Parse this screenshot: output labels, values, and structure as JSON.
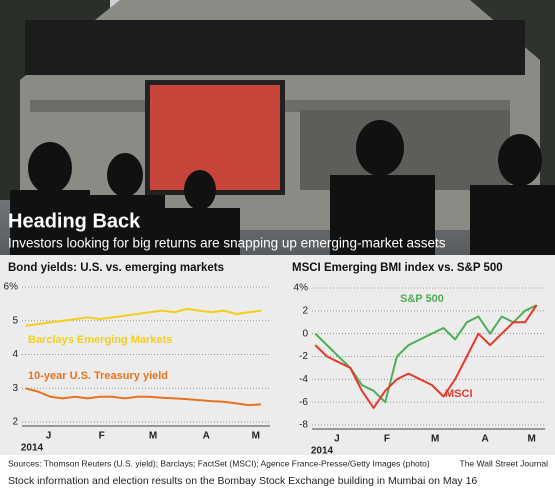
{
  "headline": "Heading Back",
  "subheadline": "Investors looking for big returns are snapping up emerging-market assets",
  "sources": "Sources: Thomson Reuters (U.S. yield); Barclays; FactSet (MSCI); Agence France-Presse/Getty Images (photo)",
  "credit": "The Wall Street Journal",
  "caption": "Stock information and election results on the Bombay Stock Exchange building in Mumbai on May 16",
  "chart_data": [
    {
      "type": "line",
      "title": "Bond yields: U.S. vs. emerging markets",
      "xlabel": "2014",
      "x": [
        2,
        9,
        16,
        23,
        30,
        37,
        44,
        51,
        58,
        65,
        72,
        79,
        86,
        93,
        100,
        107,
        114,
        121,
        128,
        135
      ],
      "xlim": [
        0,
        140
      ],
      "xticks": [
        {
          "value": 15,
          "label": "J"
        },
        {
          "value": 45,
          "label": "F"
        },
        {
          "value": 74,
          "label": "M"
        },
        {
          "value": 104,
          "label": "A"
        },
        {
          "value": 132,
          "label": "M"
        }
      ],
      "ylim": [
        2,
        6
      ],
      "yticks": [
        2,
        3,
        4,
        5,
        {
          "value": 6,
          "label": "6%"
        }
      ],
      "grid": true,
      "series": [
        {
          "name": "Barclays Emerging Markets",
          "color": "#f2cf1d",
          "values": [
            4.85,
            4.9,
            4.95,
            5.0,
            5.05,
            5.1,
            5.05,
            5.1,
            5.15,
            5.2,
            5.25,
            5.3,
            5.25,
            5.35,
            5.3,
            5.25,
            5.3,
            5.2,
            5.25,
            5.3
          ]
        },
        {
          "name": "10-year U.S. Treasury yield",
          "color": "#e8731e",
          "values": [
            3.0,
            2.9,
            2.75,
            2.7,
            2.75,
            2.7,
            2.75,
            2.75,
            2.7,
            2.75,
            2.75,
            2.72,
            2.7,
            2.68,
            2.65,
            2.62,
            2.6,
            2.55,
            2.5,
            2.52
          ]
        }
      ]
    },
    {
      "type": "line",
      "title": "MSCI Emerging BMI index vs. S&P 500",
      "xlabel": "2014",
      "x": [
        2,
        9,
        16,
        23,
        30,
        37,
        44,
        51,
        58,
        65,
        72,
        79,
        86,
        93,
        100,
        107,
        114,
        121,
        128,
        135
      ],
      "xlim": [
        0,
        140
      ],
      "xticks": [
        {
          "value": 15,
          "label": "J"
        },
        {
          "value": 45,
          "label": "F"
        },
        {
          "value": 74,
          "label": "M"
        },
        {
          "value": 104,
          "label": "A"
        },
        {
          "value": 132,
          "label": "M"
        }
      ],
      "ylim": [
        -8,
        4
      ],
      "yticks": [
        -8,
        -6,
        -4,
        -2,
        0,
        2,
        {
          "value": 4,
          "label": "4%"
        }
      ],
      "grid": true,
      "series": [
        {
          "name": "S&P 500",
          "color": "#4fae55",
          "values": [
            0,
            -1,
            -2,
            -3,
            -4.5,
            -5,
            -6,
            -2,
            -1,
            -0.5,
            0,
            0.5,
            -0.5,
            1,
            1.5,
            0,
            1.5,
            1,
            2,
            2.5
          ]
        },
        {
          "name": "MSCI",
          "color": "#e23b2b",
          "values": [
            -1,
            -2,
            -2.5,
            -3,
            -5,
            -6.5,
            -5,
            -4,
            -3.5,
            -4,
            -4.5,
            -5.5,
            -4,
            -2,
            0,
            -1,
            0,
            1,
            1,
            2.5
          ]
        }
      ]
    }
  ]
}
